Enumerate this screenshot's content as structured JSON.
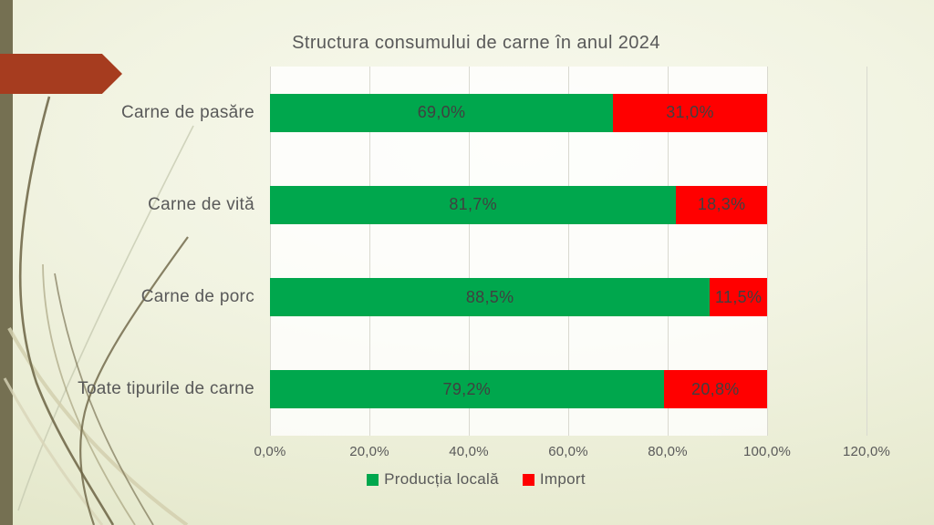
{
  "slide": {
    "stripe_color": "#757052",
    "arrow_color": "#a63c1f",
    "text_color": "#595959",
    "data_label_color": "#404040",
    "gridline_color": "#d9d9d0"
  },
  "chart_data": {
    "type": "bar",
    "orientation": "horizontal",
    "stacked": true,
    "title": "Structura consumului de carne în anul 2024",
    "categories": [
      "Carne de pasăre",
      "Carne de vită",
      "Carne de porc",
      "Toate tipurile de carne"
    ],
    "series": [
      {
        "name": "Producția locală",
        "color": "#00a74d",
        "values": [
          69.0,
          81.7,
          88.5,
          79.2
        ],
        "labels": [
          "69,0%",
          "81,7%",
          "88,5%",
          "79,2%"
        ]
      },
      {
        "name": "Import",
        "color": "#ff0000",
        "values": [
          31.0,
          18.3,
          11.5,
          20.8
        ],
        "labels": [
          "31,0%",
          "18,3%",
          "11,5%",
          "20,8%"
        ]
      }
    ],
    "xlim": [
      0,
      120
    ],
    "x_ticks": [
      0,
      20,
      40,
      60,
      80,
      100,
      120
    ],
    "x_tick_labels": [
      "0,0%",
      "20,0%",
      "40,0%",
      "60,0%",
      "80,0%",
      "100,0%",
      "120,0%"
    ],
    "legend_position": "bottom",
    "gridlines": "vertical"
  }
}
